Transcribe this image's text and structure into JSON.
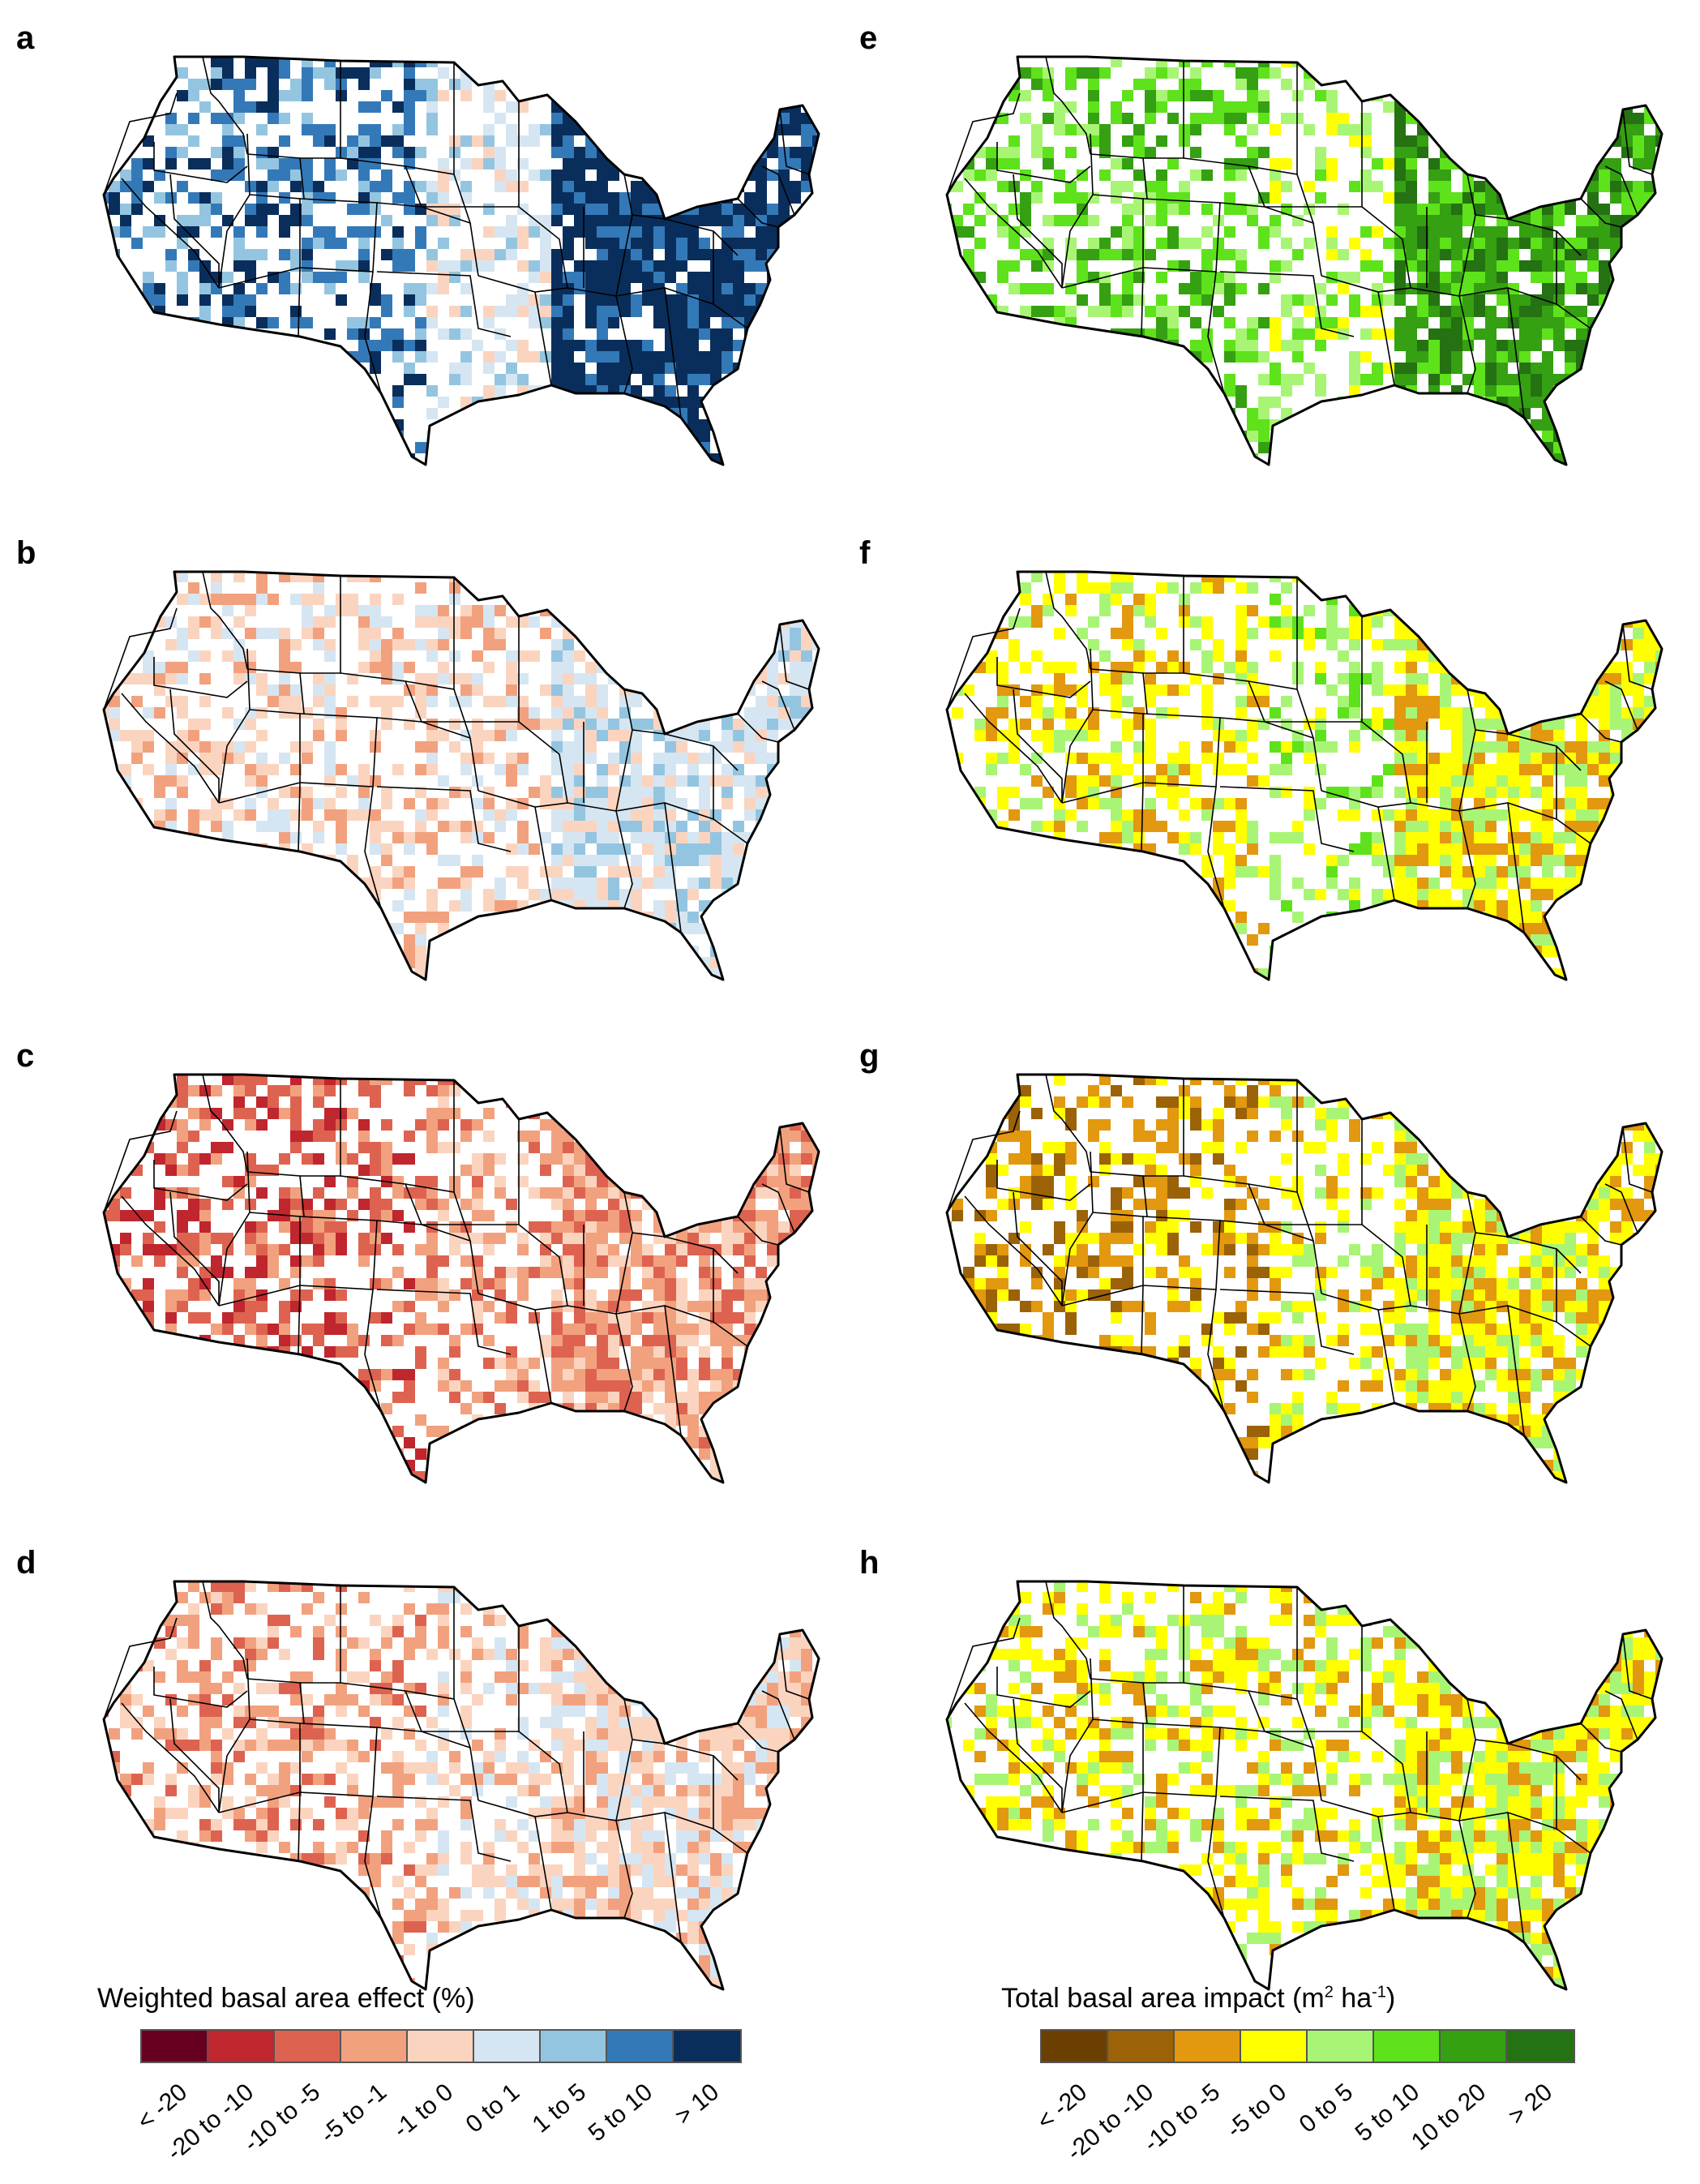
{
  "left_legend": {
    "title": "Weighted basal area effect (%)",
    "bins": [
      {
        "label": "< -20",
        "color": "#67001f"
      },
      {
        "label": "-20 to -10",
        "color": "#c0262e"
      },
      {
        "label": "-10 to -5",
        "color": "#dd6350"
      },
      {
        "label": "-5 to -1",
        "color": "#f2a17e"
      },
      {
        "label": "-1 to 0",
        "color": "#fbd4bf"
      },
      {
        "label": "0 to 1",
        "color": "#d5e6f2"
      },
      {
        "label": "1 to 5",
        "color": "#94c5e0"
      },
      {
        "label": "5 to 10",
        "color": "#3479b7"
      },
      {
        "label": "> 10",
        "color": "#0a2e5c"
      }
    ]
  },
  "right_legend": {
    "title_main": "Total basal area impact (m",
    "title_sup1": "2",
    "title_mid": " ha",
    "title_sup2": "-1",
    "title_end": ")",
    "bins": [
      {
        "label": "< -20",
        "color": "#6b3f00"
      },
      {
        "label": "-20 to -10",
        "color": "#9b6207"
      },
      {
        "label": "-10 to -5",
        "color": "#e2980f"
      },
      {
        "label": "-5 to 0",
        "color": "#ffff00"
      },
      {
        "label": "0 to 5",
        "color": "#a8f575"
      },
      {
        "label": "5 to 10",
        "color": "#5ee21b"
      },
      {
        "label": "10 to 20",
        "color": "#35a012"
      },
      {
        "label": "> 20",
        "color": "#247212"
      }
    ]
  },
  "panels": [
    {
      "id": "a",
      "label": "a",
      "palette": "left",
      "west": 7,
      "mid": 5,
      "east": 8
    },
    {
      "id": "b",
      "label": "b",
      "palette": "left",
      "west": 4,
      "mid": 4,
      "east": 5
    },
    {
      "id": "c",
      "label": "c",
      "palette": "left",
      "west": 2,
      "mid": 3,
      "east": 3
    },
    {
      "id": "d",
      "label": "d",
      "palette": "left",
      "west": 3,
      "mid": 4,
      "east": 4
    },
    {
      "id": "e",
      "label": "e",
      "palette": "right",
      "west": 5,
      "mid": 4,
      "east": 6
    },
    {
      "id": "f",
      "label": "f",
      "palette": "right",
      "west": 3,
      "mid": 4,
      "east": 3
    },
    {
      "id": "g",
      "label": "g",
      "palette": "right",
      "west": 2,
      "mid": 3,
      "east": 3
    },
    {
      "id": "h",
      "label": "h",
      "palette": "right",
      "west": 3,
      "mid": 3,
      "east": 3
    }
  ]
}
